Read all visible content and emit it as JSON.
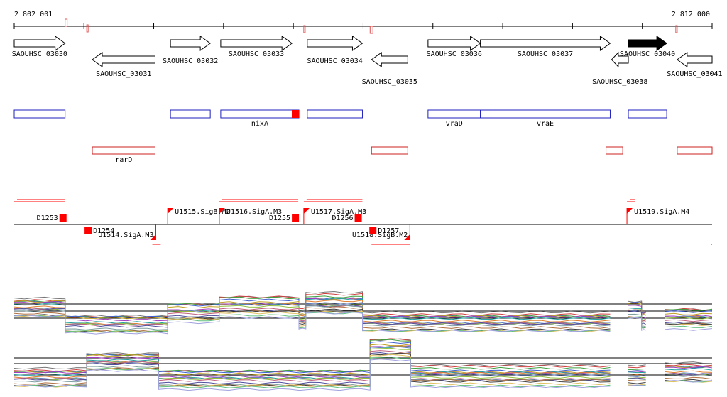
{
  "ruler": {
    "start_label": "2 802 001",
    "end_label": "2 812 000",
    "start_coord": 2802001,
    "end_coord": 2812000
  },
  "colors": {
    "gene_outline": "#000000",
    "gene_highlight": "#000000",
    "blue_feature": "#1f1fbf",
    "red_feature": "#cc2222",
    "marker_red": "#ff0000",
    "expression_axis": "#000000"
  },
  "genes": [
    {
      "id": "SAOUHSC_03030",
      "start": 2802001,
      "end": 2802730,
      "strand": "+",
      "highlight": false
    },
    {
      "id": "SAOUHSC_03031",
      "start": 2803120,
      "end": 2804020,
      "strand": "-",
      "highlight": false
    },
    {
      "id": "SAOUHSC_03032",
      "start": 2804240,
      "end": 2804810,
      "strand": "+",
      "highlight": false
    },
    {
      "id": "SAOUHSC_03033",
      "start": 2804960,
      "end": 2805980,
      "strand": "+",
      "highlight": false
    },
    {
      "id": "SAOUHSC_03034",
      "start": 2806200,
      "end": 2806990,
      "strand": "+",
      "highlight": false
    },
    {
      "id": "SAOUHSC_03035",
      "start": 2807120,
      "end": 2807640,
      "strand": "-",
      "highlight": false
    },
    {
      "id": "SAOUHSC_03036",
      "start": 2807930,
      "end": 2808680,
      "strand": "+",
      "highlight": false
    },
    {
      "id": "SAOUHSC_03037",
      "start": 2808680,
      "end": 2810540,
      "strand": "+",
      "highlight": false
    },
    {
      "id": "SAOUHSC_03038",
      "start": 2810560,
      "end": 2810800,
      "strand": "-",
      "highlight": false
    },
    {
      "id": "SAOUHSC_03040",
      "start": 2810800,
      "end": 2811350,
      "strand": "+",
      "highlight": true
    },
    {
      "id": "SAOUHSC_03041",
      "start": 2811500,
      "end": 2812000,
      "strand": "-",
      "highlight": false
    }
  ],
  "blue_features": [
    {
      "label": "",
      "start": 2802001,
      "end": 2802730
    },
    {
      "label": "",
      "start": 2804240,
      "end": 2804810
    },
    {
      "label": "nixA",
      "start": 2804960,
      "end": 2806080,
      "marked": true
    },
    {
      "label": "",
      "start": 2806200,
      "end": 2806990
    },
    {
      "label": "vraD",
      "start": 2807930,
      "end": 2808680
    },
    {
      "label": "vraE",
      "start": 2808680,
      "end": 2810540
    },
    {
      "label": "",
      "start": 2810800,
      "end": 2811350
    }
  ],
  "red_features": [
    {
      "label": "rarD",
      "start": 2803120,
      "end": 2804020
    },
    {
      "label": "",
      "start": 2807120,
      "end": 2807640
    },
    {
      "label": "",
      "start": 2810480,
      "end": 2810720
    },
    {
      "label": "",
      "start": 2811500,
      "end": 2812000
    }
  ],
  "promoters": [
    {
      "label": "U1514.SigA.M3",
      "pos": 2804030,
      "strand": "-"
    },
    {
      "label": "U1515.SigB.M2",
      "pos": 2804200,
      "strand": "+"
    },
    {
      "label": "U1516.SigA.M3",
      "pos": 2804940,
      "strand": "+"
    },
    {
      "label": "U1517.SigA.M3",
      "pos": 2806150,
      "strand": "+"
    },
    {
      "label": "U1518.SigB.M2",
      "pos": 2807670,
      "strand": "-"
    },
    {
      "label": "U1519.SigA.M4",
      "pos": 2810780,
      "strand": "+"
    }
  ],
  "terminators": [
    {
      "label": "D1253",
      "pos": 2802700,
      "strand": "+"
    },
    {
      "label": "D1254",
      "pos": 2803060,
      "strand": "-"
    },
    {
      "label": "D1255",
      "pos": 2806030,
      "strand": "+"
    },
    {
      "label": "D1256",
      "pos": 2806930,
      "strand": "+"
    },
    {
      "label": "D1257",
      "pos": 2807140,
      "strand": "-"
    }
  ],
  "upper_tracks": [
    {
      "strand": "+",
      "start": 2802001,
      "end": 2802730
    },
    {
      "strand": "+",
      "start": 2804940,
      "end": 2806070
    },
    {
      "strand": "+",
      "start": 2806150,
      "end": 2806990
    },
    {
      "strand": "+",
      "start": 2810780,
      "end": 2810900
    },
    {
      "strand": "-",
      "start": 2803980,
      "end": 2804100
    },
    {
      "strand": "-",
      "start": 2807120,
      "end": 2807670
    },
    {
      "strand": "-",
      "start": 2811990,
      "end": 2812000
    }
  ],
  "expression_forward": {
    "segments": [
      {
        "start": 2802001,
        "end": 2802730,
        "level": 0.74
      },
      {
        "start": 2802730,
        "end": 2804200,
        "level": 0.12
      },
      {
        "start": 2804200,
        "end": 2804940,
        "level": 0.55
      },
      {
        "start": 2804940,
        "end": 2806080,
        "level": 0.78
      },
      {
        "start": 2806080,
        "end": 2806180,
        "level": 0.35
      },
      {
        "start": 2806180,
        "end": 2806990,
        "level": 0.9
      },
      {
        "start": 2806990,
        "end": 2810540,
        "level": 0.2
      },
      {
        "start": 2810800,
        "end": 2810990,
        "level": 0.65
      },
      {
        "start": 2810990,
        "end": 2811050,
        "level": 0.25
      },
      {
        "start": 2811320,
        "end": 2812000,
        "level": 0.33
      }
    ]
  },
  "expression_reverse": {
    "segments": [
      {
        "start": 2802001,
        "end": 2803040,
        "level": 0.15
      },
      {
        "start": 2803040,
        "end": 2804070,
        "level": 0.62
      },
      {
        "start": 2804070,
        "end": 2807100,
        "level": 0.1
      },
      {
        "start": 2807100,
        "end": 2807680,
        "level": 1.0
      },
      {
        "start": 2807680,
        "end": 2810540,
        "level": 0.2
      },
      {
        "start": 2810800,
        "end": 2811050,
        "level": 0.2
      },
      {
        "start": 2811320,
        "end": 2812000,
        "level": 0.3
      }
    ]
  }
}
